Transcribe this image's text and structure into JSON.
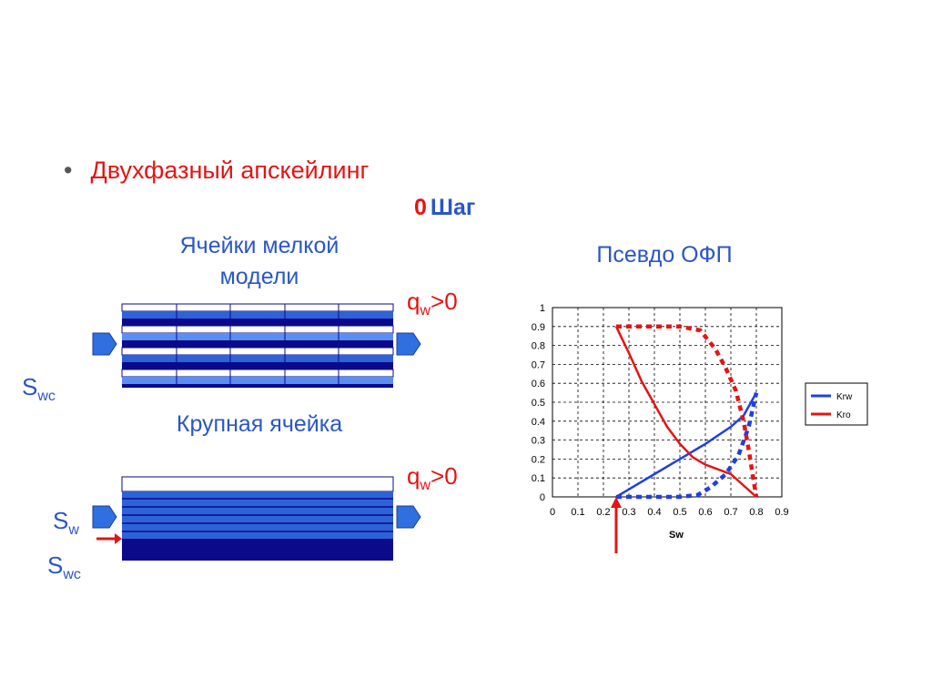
{
  "slide": {
    "bullet": "Двухфазный апскейлинг",
    "step_number": "0",
    "step_label": "Шаг",
    "fine_model_caption_line1": "Ячейки мелкой",
    "fine_model_caption_line2": "модели",
    "coarse_cell_caption": "Крупная ячейка",
    "chart_caption": "Псевдо ОФП",
    "q_symbol": "q",
    "q_subscript": "w",
    "q_relation": ">0",
    "s_symbol": "S",
    "swc_subscript": "wc",
    "sw_subscript": "w"
  },
  "colors": {
    "title_red": "#e41414",
    "text_blue": "#2a56c6",
    "cell_dark": "#0a0a8a",
    "cell_mid": "#2e63d8",
    "cell_light": "#5a8ef0",
    "arrow_blue": "#2f6fe0"
  },
  "chart_data": {
    "type": "line",
    "x_label": "Sw",
    "xlim": [
      0,
      0.9
    ],
    "ylim": [
      0,
      1
    ],
    "x_ticks": [
      "0",
      "0.1",
      "0.2",
      "0.3",
      "0.4",
      "0.5",
      "0.6",
      "0.7",
      "0.8",
      "0.9"
    ],
    "y_ticks": [
      "0",
      "0.1",
      "0.2",
      "0.3",
      "0.4",
      "0.5",
      "0.6",
      "0.7",
      "0.8",
      "0.9",
      "1"
    ],
    "grid": true,
    "legend_position": "right",
    "series": [
      {
        "name": "Krw",
        "color": "#1f3fe0",
        "style": "solid",
        "x": [
          0.25,
          0.3,
          0.4,
          0.5,
          0.6,
          0.7,
          0.75,
          0.8
        ],
        "y": [
          0.0,
          0.04,
          0.12,
          0.2,
          0.28,
          0.37,
          0.43,
          0.55
        ]
      },
      {
        "name": "Kro",
        "color": "#e41414",
        "style": "solid",
        "x": [
          0.25,
          0.3,
          0.35,
          0.4,
          0.45,
          0.5,
          0.55,
          0.6,
          0.7,
          0.75,
          0.8
        ],
        "y": [
          0.9,
          0.76,
          0.61,
          0.49,
          0.37,
          0.28,
          0.21,
          0.17,
          0.12,
          0.06,
          0.0
        ]
      },
      {
        "color": "#1f3fe0",
        "style": "dotted",
        "x": [
          0.25,
          0.3,
          0.4,
          0.5,
          0.57,
          0.62,
          0.68,
          0.73,
          0.77,
          0.8
        ],
        "y": [
          0.0,
          0.0,
          0.0,
          0.0,
          0.01,
          0.05,
          0.12,
          0.22,
          0.37,
          0.55
        ]
      },
      {
        "color": "#e41414",
        "style": "dotted",
        "x": [
          0.25,
          0.3,
          0.4,
          0.5,
          0.58,
          0.64,
          0.68,
          0.72,
          0.75,
          0.77,
          0.79,
          0.8
        ],
        "y": [
          0.9,
          0.9,
          0.9,
          0.9,
          0.88,
          0.78,
          0.68,
          0.56,
          0.4,
          0.25,
          0.08,
          0.0
        ]
      }
    ],
    "marker_x": 0.25
  }
}
